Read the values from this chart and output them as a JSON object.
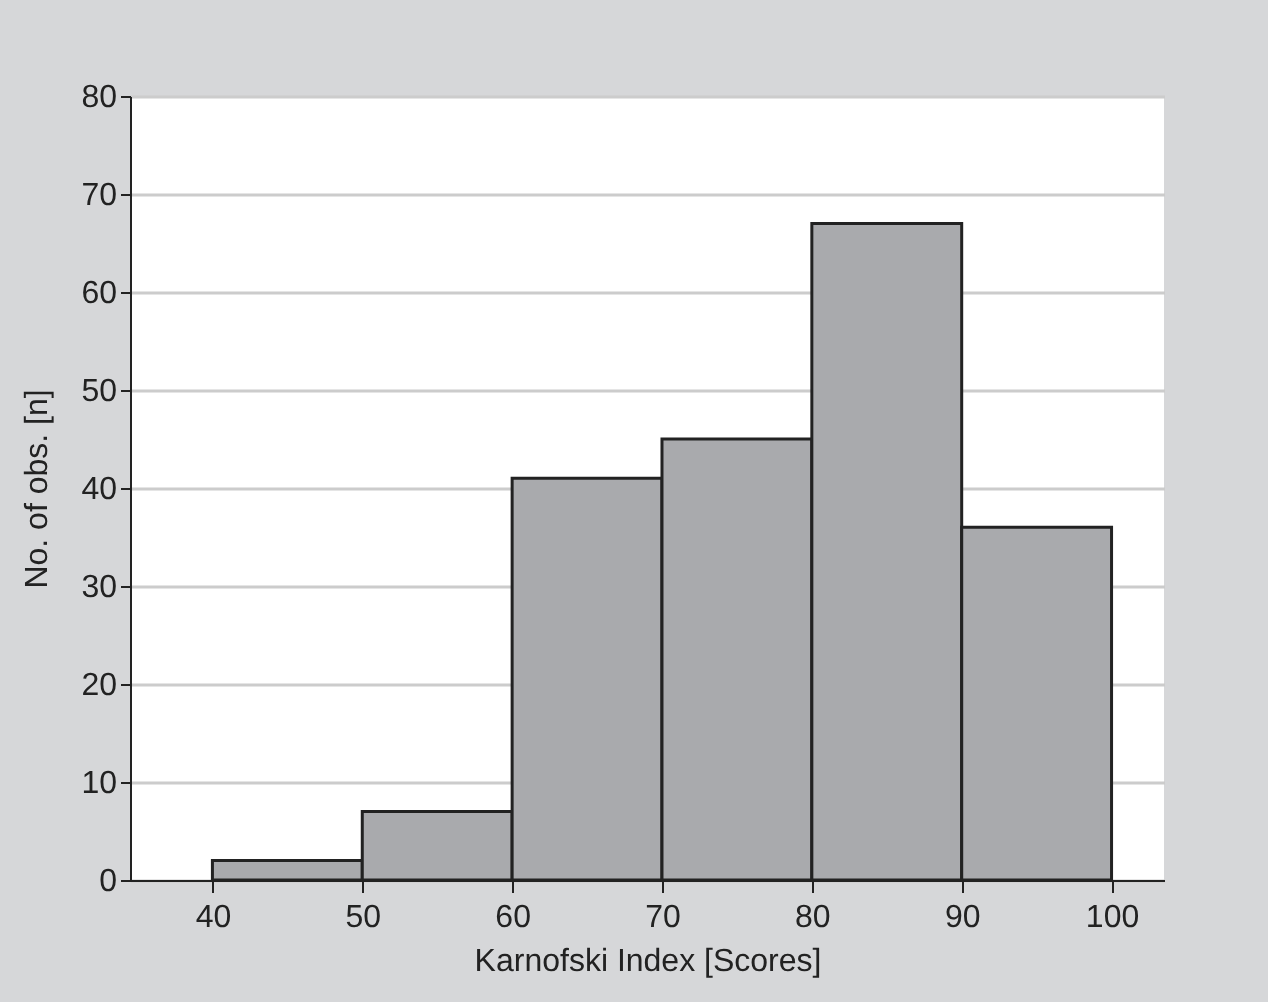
{
  "chart_data": {
    "type": "histogram",
    "xlabel": "Karnofski Index [Scores]",
    "ylabel": "No. of obs. [n]",
    "bins": [
      40,
      50,
      60,
      70,
      80,
      90,
      100
    ],
    "values": [
      2,
      7,
      41,
      45,
      67,
      36
    ],
    "color": "#a9aaad",
    "xlim": [
      34.5,
      103.5
    ],
    "xticks": [
      40,
      50,
      60,
      70,
      80,
      90,
      100
    ],
    "ylim": [
      0,
      80
    ],
    "yticks": [
      0,
      10,
      20,
      30,
      40,
      50,
      60,
      70,
      80
    ],
    "grid": "y"
  }
}
